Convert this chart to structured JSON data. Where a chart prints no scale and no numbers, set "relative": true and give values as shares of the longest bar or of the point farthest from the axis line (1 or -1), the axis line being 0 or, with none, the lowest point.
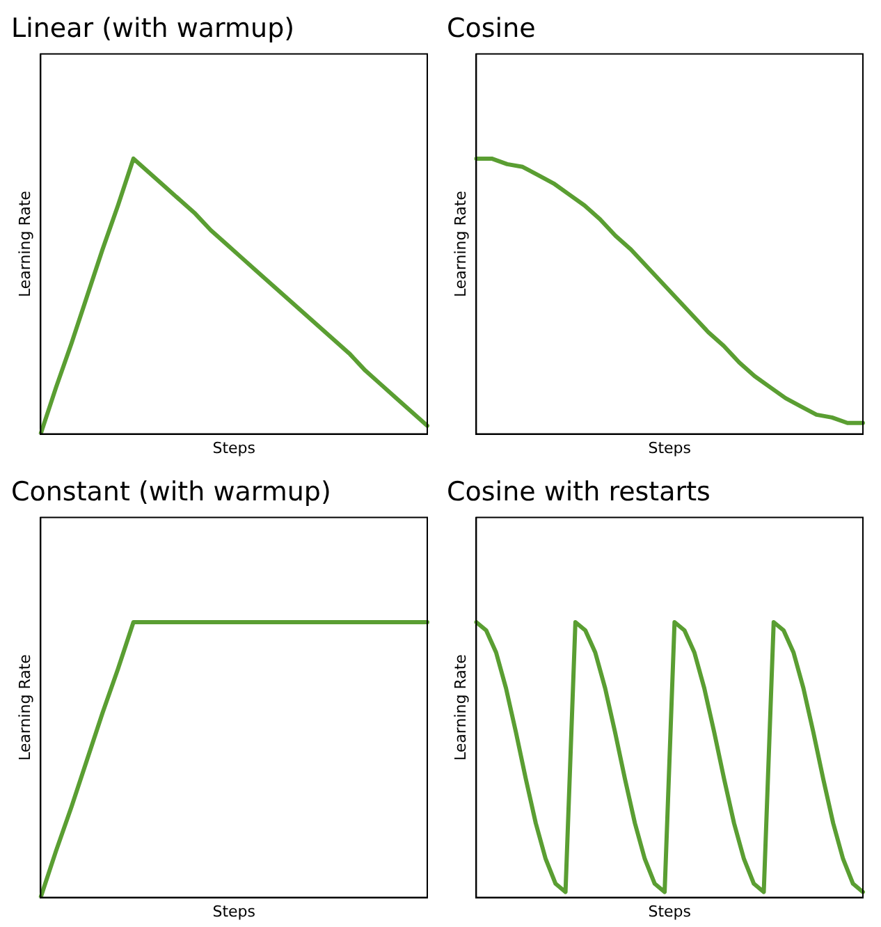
{
  "chart_data": [
    {
      "type": "line",
      "title": "Linear (with warmup)",
      "xlabel": "Steps",
      "ylabel": "Learning Rate",
      "relative": true,
      "tick_labels": false,
      "grid": false,
      "legend": false,
      "categories": [
        null,
        null,
        null,
        null,
        null,
        null,
        null,
        null,
        null,
        null,
        null,
        null,
        null,
        null,
        null,
        null,
        null,
        null,
        null,
        null,
        null,
        null,
        null,
        null,
        null,
        null
      ],
      "series": [
        {
          "color": "#5a9e32",
          "values": [
            0,
            0.17,
            0.33,
            0.5,
            0.67,
            0.83,
            1,
            0.95,
            0.9,
            0.85,
            0.8,
            0.74,
            0.69,
            0.64,
            0.59,
            0.54,
            0.49,
            0.44,
            0.39,
            0.34,
            0.29,
            0.23,
            0.18,
            0.13,
            0.08,
            0.03
          ]
        }
      ]
    },
    {
      "type": "line",
      "title": "Cosine",
      "xlabel": "Steps",
      "ylabel": "Learning Rate",
      "relative": true,
      "tick_labels": false,
      "grid": false,
      "legend": false,
      "categories": [
        null,
        null,
        null,
        null,
        null,
        null,
        null,
        null,
        null,
        null,
        null,
        null,
        null,
        null,
        null,
        null,
        null,
        null,
        null,
        null,
        null,
        null,
        null,
        null,
        null,
        null
      ],
      "series": [
        {
          "color": "#5a9e32",
          "values": [
            1,
            1,
            0.98,
            0.97,
            0.94,
            0.91,
            0.87,
            0.83,
            0.78,
            0.72,
            0.67,
            0.61,
            0.55,
            0.49,
            0.43,
            0.37,
            0.32,
            0.26,
            0.21,
            0.17,
            0.13,
            0.1,
            0.07,
            0.06,
            0.04,
            0.04
          ]
        }
      ]
    },
    {
      "type": "line",
      "title": "Constant (with warmup)",
      "xlabel": "Steps",
      "ylabel": "Learning Rate",
      "relative": true,
      "tick_labels": false,
      "grid": false,
      "legend": false,
      "categories": [
        null,
        null,
        null,
        null,
        null,
        null,
        null,
        null,
        null,
        null,
        null,
        null,
        null,
        null,
        null,
        null,
        null,
        null,
        null,
        null,
        null,
        null,
        null,
        null,
        null,
        null
      ],
      "series": [
        {
          "color": "#5a9e32",
          "values": [
            0,
            0.17,
            0.33,
            0.5,
            0.67,
            0.83,
            1,
            1,
            1,
            1,
            1,
            1,
            1,
            1,
            1,
            1,
            1,
            1,
            1,
            1,
            1,
            1,
            1,
            1,
            1,
            1
          ]
        }
      ]
    },
    {
      "type": "line",
      "title": "Cosine with restarts",
      "xlabel": "Steps",
      "ylabel": "Learning Rate",
      "relative": true,
      "tick_labels": false,
      "grid": false,
      "legend": false,
      "categories": [
        null,
        null,
        null,
        null,
        null,
        null,
        null,
        null,
        null,
        null,
        null,
        null,
        null,
        null,
        null,
        null,
        null,
        null,
        null,
        null,
        null,
        null,
        null,
        null,
        null,
        null,
        null,
        null,
        null,
        null,
        null,
        null,
        null,
        null,
        null,
        null,
        null,
        null,
        null,
        null
      ],
      "series": [
        {
          "color": "#5a9e32",
          "values": [
            1,
            0.97,
            0.89,
            0.76,
            0.6,
            0.43,
            0.27,
            0.14,
            0.05,
            0.02,
            1,
            0.97,
            0.89,
            0.76,
            0.6,
            0.43,
            0.27,
            0.14,
            0.05,
            0.02,
            1,
            0.97,
            0.89,
            0.76,
            0.6,
            0.43,
            0.27,
            0.14,
            0.05,
            0.02,
            1,
            0.97,
            0.89,
            0.76,
            0.6,
            0.43,
            0.27,
            0.14,
            0.05,
            0.02
          ]
        }
      ]
    }
  ]
}
